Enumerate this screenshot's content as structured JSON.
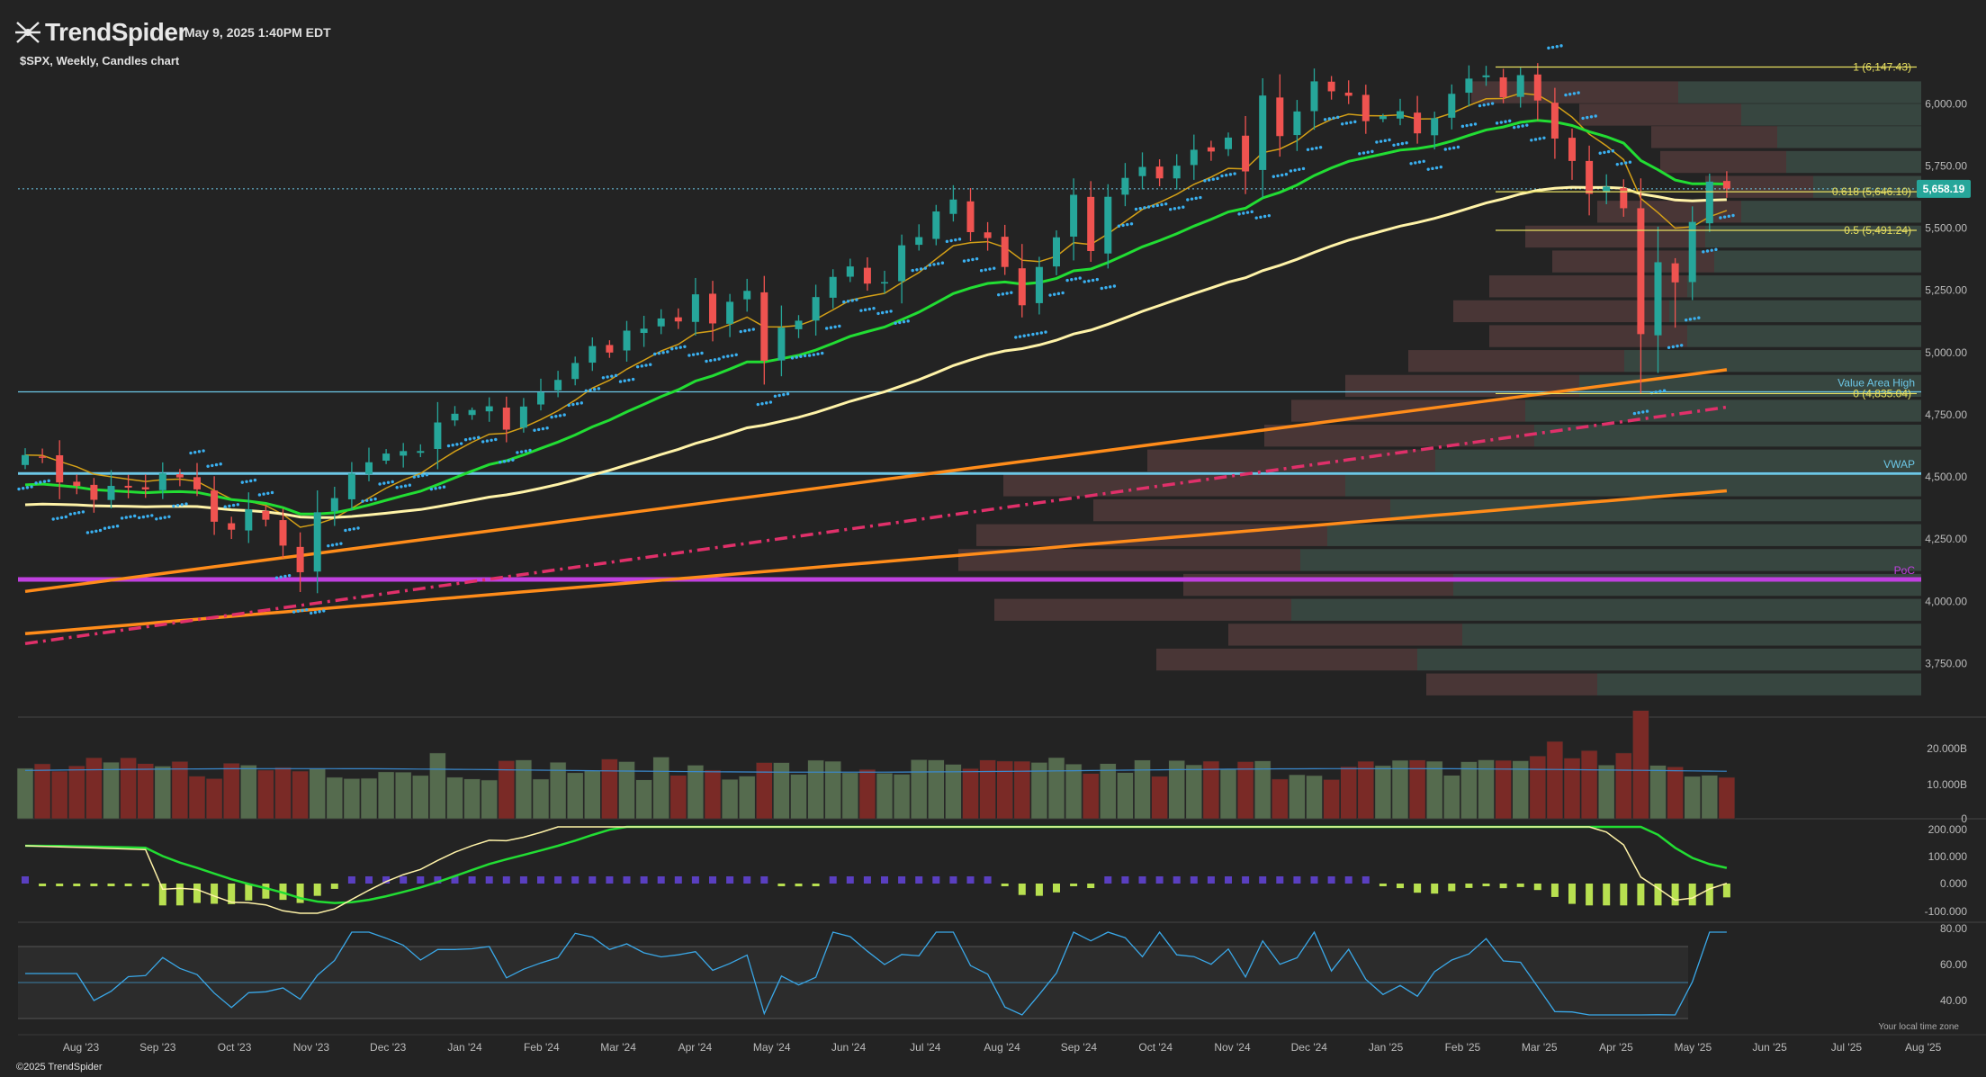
{
  "header": {
    "brand": "TrendSpider",
    "timestamp": "May 9, 2025 1:40PM EDT",
    "subtitle": "$SPX, Weekly, Candles chart",
    "copyright": "©2025 TrendSpider",
    "tz_note": "Your local time zone"
  },
  "colors": {
    "background": "#232323",
    "up": "#26a69a",
    "down": "#ef5350",
    "ema_fast": "#d4a017",
    "ema_mid": "#22dd33",
    "ema_slow": "#fff3a8",
    "ma_orange": "#ff8c1a",
    "vwap": "#6cc7e6",
    "poc": "#c040e0",
    "psar": "#3ab0f0",
    "dashdot": "#e0306a",
    "fib": "#e8e060",
    "price_tag": "#26a69a"
  },
  "chart_data": [
    {
      "type": "candlestick",
      "name": "$SPX Weekly",
      "y_ticks": [
        "6,000.00",
        "5,750.00",
        "5,500.00",
        "5,250.00",
        "5,000.00",
        "4,750.00",
        "4,500.00",
        "4,250.00",
        "4,000.00",
        "3,750.00"
      ],
      "ylim": [
        3560,
        6200
      ],
      "x_labels": [
        "Aug '23",
        "Sep '23",
        "Oct '23",
        "Nov '23",
        "Dec '23",
        "Jan '24",
        "Feb '24",
        "Mar '24",
        "Apr '24",
        "May '24",
        "Jun '24",
        "Jul '24",
        "Aug '24",
        "Sep '24",
        "Oct '24",
        "Nov '24",
        "Dec '24",
        "Jan '25",
        "Feb '25",
        "Mar '25",
        "Apr '25",
        "May '25",
        "Jun '25",
        "Jul '25",
        "Aug '25"
      ],
      "closes": [
        4588,
        4582,
        4478,
        4464,
        4408,
        4464,
        4457,
        4450,
        4515,
        4498,
        4450,
        4320,
        4288,
        4370,
        4328,
        4224,
        4117,
        4358,
        4415,
        4514,
        4559,
        4594,
        4604,
        4604,
        4719,
        4754,
        4769,
        4784,
        4690,
        4783,
        4840,
        4890,
        4958,
        5026,
        5000,
        5088,
        5096,
        5137,
        5125,
        5234,
        5117,
        5204,
        5248,
        4967,
        5100,
        5128,
        5223,
        5304,
        5346,
        5277,
        5283,
        5431,
        5464,
        5567,
        5615,
        5484,
        5460,
        5344,
        5190,
        5344,
        5463,
        5634,
        5408,
        5626,
        5702,
        5746,
        5700,
        5751,
        5815,
        5808,
        5864,
        5728,
        6033,
        5870,
        5969,
        6090,
        6050,
        6032,
        5930,
        5950,
        5970,
        5881,
        5942,
        6040,
        6101,
        6114,
        6026,
        6115,
        6013,
        5860,
        5770,
        5638,
        5667,
        5580,
        5074,
        5363,
        5282,
        5525,
        5687,
        5659
      ],
      "current_price": "5,658.19",
      "fib_levels": [
        {
          "label": "1 (6,147.43)",
          "value": 6147.43
        },
        {
          "label": "0.618 (5,646.10)",
          "value": 5646.1
        },
        {
          "label": "0.5 (5,491.24)",
          "value": 5491.24
        },
        {
          "label": "0 (4,835.04)",
          "value": 4835.04
        }
      ],
      "levels": [
        {
          "label": "Value Area High",
          "value": 4842
        },
        {
          "label": "VWAP",
          "value": 4514
        },
        {
          "label": "PoC",
          "value": 4088
        }
      ]
    },
    {
      "type": "bar",
      "name": "Volume",
      "y_ticks": [
        "20.000B",
        "10.000B",
        "0"
      ]
    },
    {
      "type": "line",
      "name": "MACD",
      "y_ticks": [
        "200.000",
        "100.000",
        "0.000",
        "-100.000"
      ]
    },
    {
      "type": "line",
      "name": "RSI",
      "y_ticks": [
        "80.00",
        "60.00",
        "40.00"
      ]
    }
  ]
}
